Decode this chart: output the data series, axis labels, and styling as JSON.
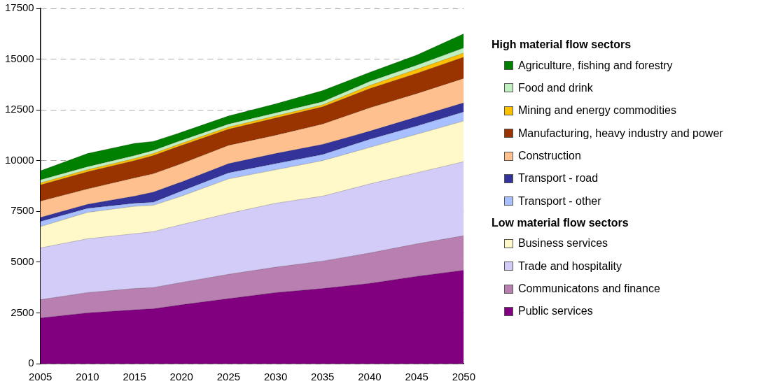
{
  "chart_data": {
    "type": "area",
    "stacked": true,
    "x": [
      2005,
      2010,
      2015,
      2017,
      2020,
      2025,
      2030,
      2035,
      2040,
      2045,
      2050
    ],
    "xlim": [
      2005,
      2050
    ],
    "xticks": [
      2005,
      2010,
      2015,
      2020,
      2025,
      2030,
      2035,
      2040,
      2045,
      2050
    ],
    "ylim": [
      0,
      17500
    ],
    "yticks": [
      0,
      2500,
      5000,
      7500,
      10000,
      12500,
      15000,
      17500
    ],
    "grid": "y",
    "legend": "right",
    "annotations": [
      "High material flow sectors",
      "Low material flow sectors"
    ],
    "series": [
      {
        "name": "Public services",
        "color": "#800080",
        "values": [
          2250,
          2500,
          2650,
          2700,
          2900,
          3200,
          3500,
          3700,
          3950,
          4300,
          4600
        ]
      },
      {
        "name": "Communicatons and finance",
        "color": "#b87fb0",
        "values": [
          900,
          1000,
          1050,
          1050,
          1100,
          1200,
          1250,
          1350,
          1500,
          1600,
          1700
        ]
      },
      {
        "name": "Trade and hospitality",
        "color": "#d4ccf8",
        "values": [
          2550,
          2650,
          2700,
          2750,
          2850,
          3000,
          3150,
          3200,
          3400,
          3500,
          3650
        ]
      },
      {
        "name": "Business services",
        "color": "#fff8c8",
        "values": [
          1050,
          1300,
          1350,
          1300,
          1400,
          1700,
          1650,
          1750,
          1800,
          1900,
          2000
        ]
      },
      {
        "name": "Transport - other",
        "color": "#a8c0ff",
        "values": [
          250,
          200,
          150,
          150,
          250,
          300,
          300,
          300,
          400,
          400,
          450
        ]
      },
      {
        "name": "Transport - road",
        "color": "#333399",
        "values": [
          200,
          200,
          350,
          500,
          450,
          450,
          500,
          500,
          400,
          450,
          450
        ]
      },
      {
        "name": "Construction",
        "color": "#ffc090",
        "values": [
          800,
          750,
          900,
          900,
          900,
          900,
          900,
          1000,
          1150,
          1150,
          1200
        ]
      },
      {
        "name": "Manufacturing, heavy industry and power",
        "color": "#993300",
        "values": [
          800,
          850,
          850,
          900,
          900,
          800,
          850,
          850,
          950,
          1000,
          1050
        ]
      },
      {
        "name": "Mining and energy commodities",
        "color": "#ffc000",
        "values": [
          100,
          100,
          100,
          100,
          100,
          100,
          100,
          100,
          150,
          200,
          200
        ]
      },
      {
        "name": "Food and drink",
        "color": "#c0f0c0",
        "values": [
          150,
          150,
          150,
          150,
          150,
          150,
          150,
          150,
          200,
          200,
          250
        ]
      },
      {
        "name": "Agriculture, fishing and forestry",
        "color": "#008000",
        "values": [
          450,
          650,
          600,
          450,
          400,
          400,
          450,
          550,
          450,
          500,
          700
        ]
      }
    ]
  }
}
